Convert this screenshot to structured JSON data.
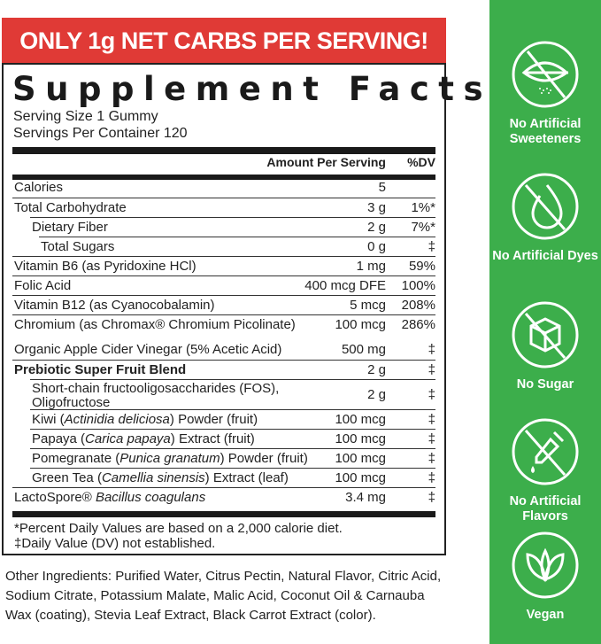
{
  "banner": "ONLY 1g NET CARBS PER SERVING!",
  "title": "Supplement Facts",
  "serving_size": "Serving Size 1 Gummy",
  "servings_per_container": "Servings Per Container 120",
  "header": {
    "amount": "Amount Per Serving",
    "dv": "%DV"
  },
  "rows": [
    {
      "name": "Calories",
      "amount": "5",
      "dv": ""
    },
    {
      "name": "Total Carbohydrate",
      "amount": "3 g",
      "dv": "1%*"
    },
    {
      "name": "Dietary Fiber",
      "amount": "2 g",
      "dv": "7%*"
    },
    {
      "name": "Total Sugars",
      "amount": "0 g",
      "dv": "‡"
    },
    {
      "name": "Vitamin B6 (as Pyridoxine HCl)",
      "amount": "1 mg",
      "dv": "59%"
    },
    {
      "name": "Folic Acid",
      "amount": "400 mcg DFE",
      "dv": "100%"
    },
    {
      "name": "Vitamin B12 (as Cyanocobalamin)",
      "amount": "5 mcg",
      "dv": "208%"
    },
    {
      "name": "Chromium (as Chromax® Chromium Picolinate)",
      "amount": "100 mcg",
      "dv": "286%"
    },
    {
      "name": "Organic Apple Cider Vinegar (5% Acetic Acid)",
      "amount": "500 mg",
      "dv": "‡"
    },
    {
      "name": "Prebiotic Super Fruit Blend",
      "amount": "2 g",
      "dv": "‡"
    },
    {
      "name": "Short-chain fructooligosaccharides (FOS), Oligofructose",
      "amount": "2 g",
      "dv": "‡"
    },
    {
      "name": "Kiwi (Actinidia deliciosa) Powder (fruit)",
      "amount": "100 mcg",
      "dv": "‡"
    },
    {
      "name": "Papaya (Carica papaya) Extract (fruit)",
      "amount": "100 mcg",
      "dv": "‡"
    },
    {
      "name": "Pomegranate (Punica granatum) Powder (fruit)",
      "amount": "100 mcg",
      "dv": "‡"
    },
    {
      "name": "Green Tea (Camellia sinensis) Extract (leaf)",
      "amount": "100 mcg",
      "dv": "‡"
    },
    {
      "name": "LactoSpore® Bacillus coagulans",
      "amount": "3.4 mg",
      "dv": "‡"
    }
  ],
  "footnotes": [
    "*Percent Daily Values are based on a 2,000 calorie diet.",
    "‡Daily Value (DV) not established."
  ],
  "other_ingredients": "Other Ingredients: Purified Water, Citrus Pectin, Natural Flavor, Citric Acid, Sodium Citrate, Potassium Malate, Malic Acid, Coconut Oil & Carnauba Wax (coating), Stevia Leaf Extract, Black Carrot Extract (color).",
  "badges": [
    {
      "icon": "no-sweetener-icon",
      "label": "No Artificial Sweeteners"
    },
    {
      "icon": "no-dye-drop-icon",
      "label": "No Artificial Dyes"
    },
    {
      "icon": "no-sugar-cube-icon",
      "label": "No Sugar"
    },
    {
      "icon": "no-dropper-icon",
      "label": "No Artificial Flavors"
    },
    {
      "icon": "leaf-icon",
      "label": "Vegan"
    }
  ],
  "colors": {
    "banner": "#e03a36",
    "panel": "#3cae4b"
  }
}
